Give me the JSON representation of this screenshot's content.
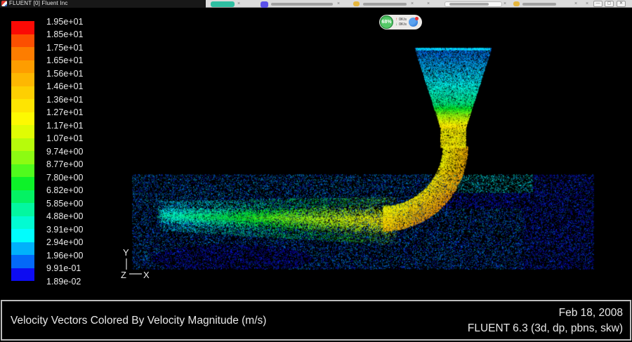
{
  "titlebar": {
    "title": "FLUENT [0] Fluent Inc"
  },
  "browser": {
    "controls": {
      "minimize": "—",
      "restore": "▢",
      "close": "✕"
    }
  },
  "net_widget": {
    "percent": "68%",
    "up_speed": "0K/s",
    "down_speed": "0K/s"
  },
  "legend": {
    "labels": [
      "1.95e+01",
      "1.85e+01",
      "1.75e+01",
      "1.65e+01",
      "1.56e+01",
      "1.46e+01",
      "1.36e+01",
      "1.27e+01",
      "1.17e+01",
      "1.07e+01",
      "9.74e+00",
      "8.77e+00",
      "7.80e+00",
      "6.82e+00",
      "5.85e+00",
      "4.88e+00",
      "3.91e+00",
      "2.94e+00",
      "1.96e+00",
      "9.91e-01",
      "1.89e-02"
    ],
    "band_colors": [
      "#fb0a05",
      "#fc4f01",
      "#fd7d00",
      "#fe9d00",
      "#feb702",
      "#fecf02",
      "#fee402",
      "#fdf902",
      "#e0fc04",
      "#b7fb0b",
      "#8cfb12",
      "#50fb1d",
      "#0df229",
      "#04f263",
      "#03f7a0",
      "#02fbd2",
      "#01fdfd",
      "#01b1fb",
      "#0369f8",
      "#0d0cf1"
    ]
  },
  "axis_triad": {
    "x": "X",
    "y": "Y",
    "z": "Z"
  },
  "caption": {
    "title": "Velocity Vectors Colored By Velocity Magnitude (m/s)",
    "date": "Feb 18, 2008",
    "version": "FLUENT 6.3 (3d, dp, pbns, skw)"
  }
}
